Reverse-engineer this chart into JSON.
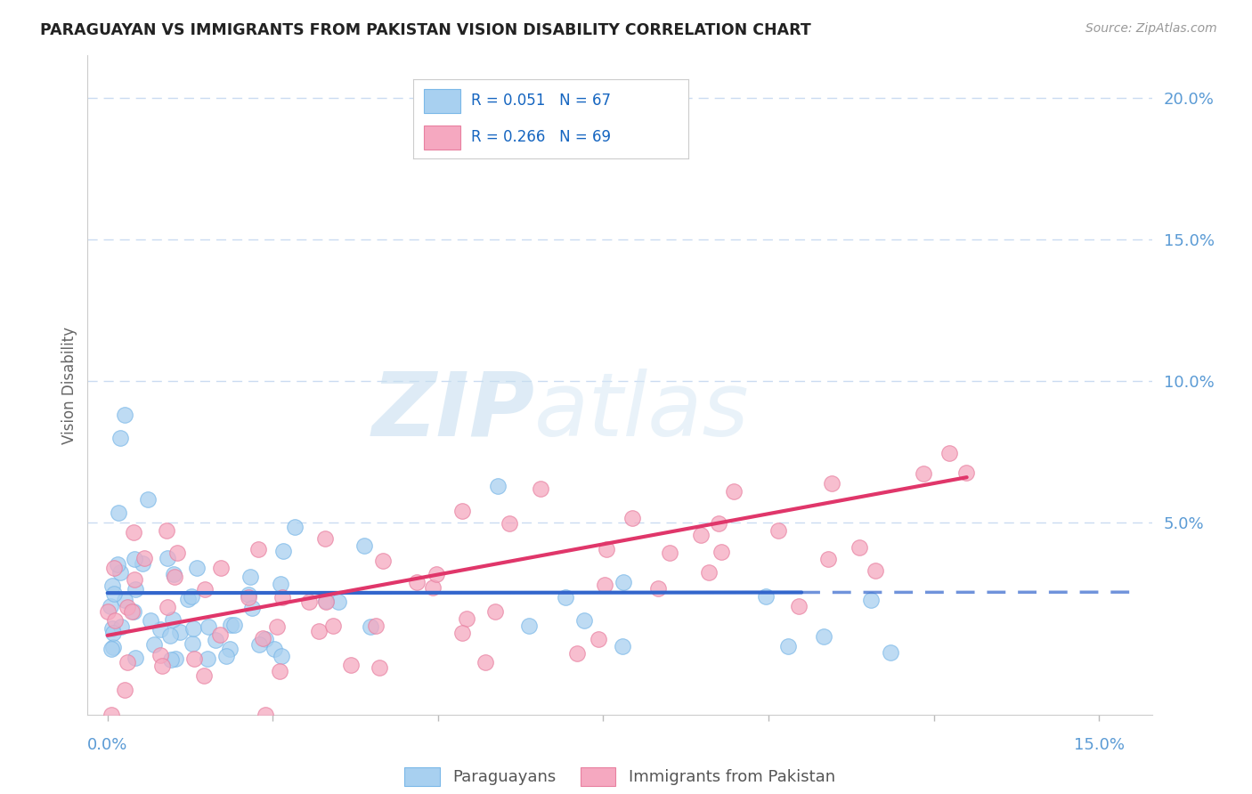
{
  "title": "PARAGUAYAN VS IMMIGRANTS FROM PAKISTAN VISION DISABILITY CORRELATION CHART",
  "source": "Source: ZipAtlas.com",
  "ylabel_label": "Vision Disability",
  "yticks": [
    0.05,
    0.1,
    0.15,
    0.2
  ],
  "ytick_labels": [
    "5.0%",
    "10.0%",
    "15.0%",
    "20.0%"
  ],
  "xlim": [
    -0.003,
    0.158
  ],
  "ylim": [
    -0.018,
    0.215
  ],
  "paraguayan_R": 0.051,
  "paraguayan_N": 67,
  "pakistan_R": 0.266,
  "pakistan_N": 69,
  "blue_scatter_color": "#A8D0F0",
  "blue_scatter_edge": "#7BB8E8",
  "blue_line_color": "#3366CC",
  "pink_scatter_color": "#F5A8C0",
  "pink_scatter_edge": "#E880A0",
  "pink_line_color": "#E0366A",
  "title_fontsize": 12.5,
  "legend_R_color": "#1565C0",
  "tick_color": "#5B9BD5",
  "background_color": "#FFFFFF",
  "grid_color": "#C5D8F0",
  "watermark_color": "#C8DFF0"
}
